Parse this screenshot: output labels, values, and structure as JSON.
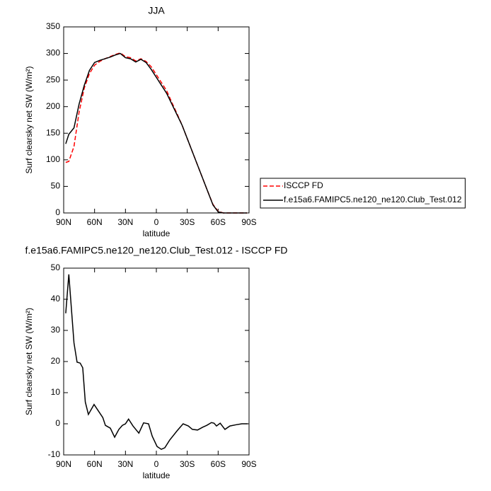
{
  "chart_data": [
    {
      "type": "line",
      "title": "JJA",
      "xlabel": "latitude",
      "ylabel": "Surf clearsky net SW (W/m²)",
      "x": [
        88,
        85,
        80,
        75,
        70,
        65,
        60,
        55,
        50,
        45,
        40,
        35,
        30,
        25,
        20,
        15,
        10,
        5,
        0,
        -5,
        -10,
        -15,
        -20,
        -25,
        -30,
        -35,
        -40,
        -45,
        -50,
        -55,
        -60,
        -65,
        -70,
        -75,
        -80,
        -85,
        -88
      ],
      "series": [
        {
          "name": "ISCCP FD",
          "color": "#ff0000",
          "dash": true,
          "values": [
            95,
            97,
            125,
            190,
            235,
            262,
            278,
            285,
            290,
            294,
            298,
            301,
            294,
            292,
            286,
            290,
            285,
            275,
            260,
            245,
            230,
            208,
            187,
            165,
            140,
            115,
            90,
            65,
            40,
            16,
            3,
            0,
            0,
            0,
            0,
            0,
            0
          ]
        },
        {
          "name": "f.e15a6.FAMIPC5.ne120_ne120.Club_Test.012",
          "color": "#000000",
          "dash": false,
          "values": [
            130,
            148,
            160,
            205,
            240,
            268,
            283,
            287,
            290,
            293,
            297,
            300,
            292,
            290,
            284,
            289,
            283,
            270,
            255,
            240,
            225,
            205,
            185,
            165,
            140,
            115,
            90,
            65,
            40,
            15,
            2,
            0,
            0,
            0,
            0,
            0,
            0
          ]
        }
      ],
      "xlim": [
        90,
        -90
      ],
      "xticks": [
        {
          "value": 90,
          "label": "90N"
        },
        {
          "value": 60,
          "label": "60N"
        },
        {
          "value": 30,
          "label": "30N"
        },
        0,
        {
          "value": -30,
          "label": "30S"
        },
        {
          "value": -60,
          "label": "60S"
        },
        {
          "value": -90,
          "label": "90S"
        }
      ],
      "ylim": [
        0,
        350
      ],
      "yticks": [
        0,
        50,
        100,
        150,
        200,
        250,
        300,
        350
      ],
      "legend": "right"
    },
    {
      "type": "line",
      "title": "f.e15a6.FAMIPC5.ne120_ne120.Club_Test.012 - ISCCP FD",
      "xlabel": "latitude",
      "ylabel": "Surf clearsky net SW (W/m²)",
      "x": [
        88,
        85,
        80,
        77,
        74,
        71.5,
        69,
        66,
        60.5,
        52,
        49.5,
        44.7,
        40.5,
        36.4,
        33,
        30,
        27,
        22.7,
        17,
        12.4,
        7.6,
        4,
        -0.7,
        -4.8,
        -8.2,
        -13,
        -20,
        -26,
        -31,
        -35,
        -40,
        -45,
        -49,
        -53.5,
        -56,
        -58.4,
        -62,
        -66.6,
        -71.4,
        -77.6,
        -83,
        -88.6
      ],
      "series": [
        {
          "name": "f.e15a6.FAMIPC5.ne120_ne120.Club_Test.012 - ISCCP FD",
          "color": "#000000",
          "dash": false,
          "values": [
            35.5,
            48,
            26,
            19.8,
            19.5,
            18,
            7,
            3,
            6.2,
            2,
            -0.5,
            -1.4,
            -4.3,
            -1.8,
            -0.5,
            0,
            1.5,
            -0.7,
            -3,
            0.3,
            0,
            -4,
            -7.3,
            -8.2,
            -7.7,
            -5.2,
            -2.3,
            0,
            -0.7,
            -1.8,
            -2,
            -1.1,
            -0.5,
            0.4,
            0.2,
            -0.7,
            0.2,
            -1.8,
            -0.7,
            -0.3,
            0,
            0
          ]
        }
      ],
      "xlim": [
        90,
        -90
      ],
      "xticks": [
        {
          "value": 90,
          "label": "90N"
        },
        {
          "value": 60,
          "label": "60N"
        },
        {
          "value": 30,
          "label": "30N"
        },
        0,
        {
          "value": -30,
          "label": "30S"
        },
        {
          "value": -60,
          "label": "60S"
        },
        {
          "value": -90,
          "label": "90S"
        }
      ],
      "ylim": [
        -10,
        50
      ],
      "yticks": [
        -10,
        0,
        10,
        20,
        30,
        40,
        50
      ]
    }
  ]
}
